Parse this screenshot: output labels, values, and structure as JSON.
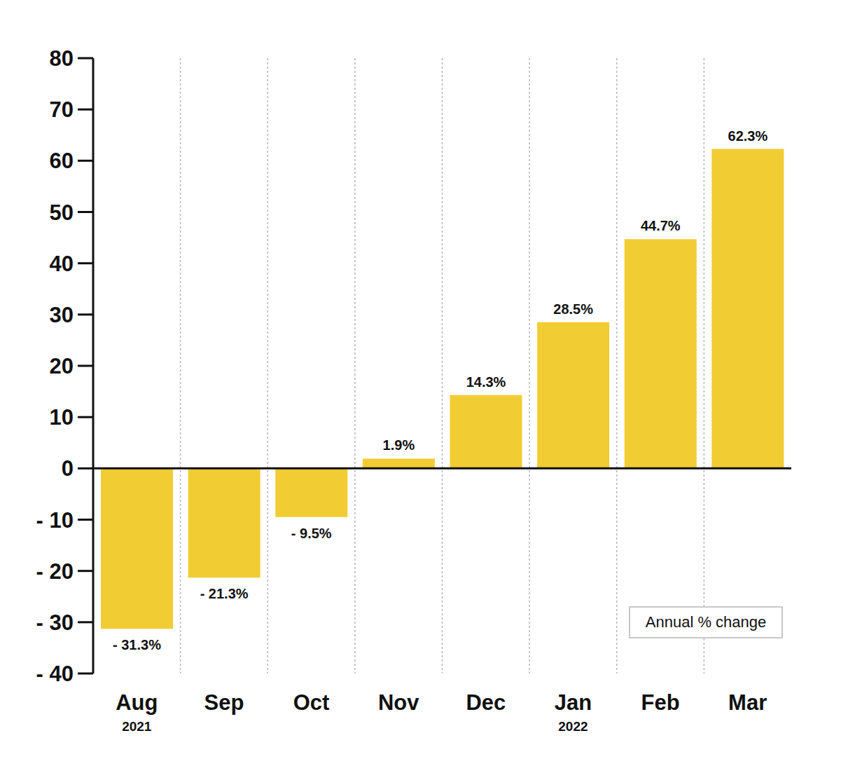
{
  "chart_data": {
    "type": "bar",
    "categories": [
      "Aug",
      "Sep",
      "Oct",
      "Nov",
      "Dec",
      "Jan",
      "Feb",
      "Mar"
    ],
    "category_sublabels": [
      "2021",
      null,
      null,
      null,
      null,
      "2022",
      null,
      null
    ],
    "values": [
      -31.3,
      -21.3,
      -9.5,
      1.9,
      14.3,
      28.5,
      44.7,
      62.3
    ],
    "value_labels": [
      "- 31.3%",
      "- 21.3%",
      "- 9.5%",
      "1.9%",
      "14.3%",
      "28.5%",
      "44.7%",
      "62.3%"
    ],
    "data_labels": true,
    "color": "#f2cc33",
    "ylim": [
      -40,
      80
    ],
    "yticks": [
      {
        "value": -40,
        "label": "- 40"
      },
      {
        "value": -30,
        "label": "- 30"
      },
      {
        "value": -20,
        "label": "- 20"
      },
      {
        "value": -10,
        "label": "- 10"
      },
      0,
      10,
      20,
      30,
      40,
      50,
      60,
      70,
      80
    ],
    "grid": true,
    "annotation": "Annual % change"
  }
}
